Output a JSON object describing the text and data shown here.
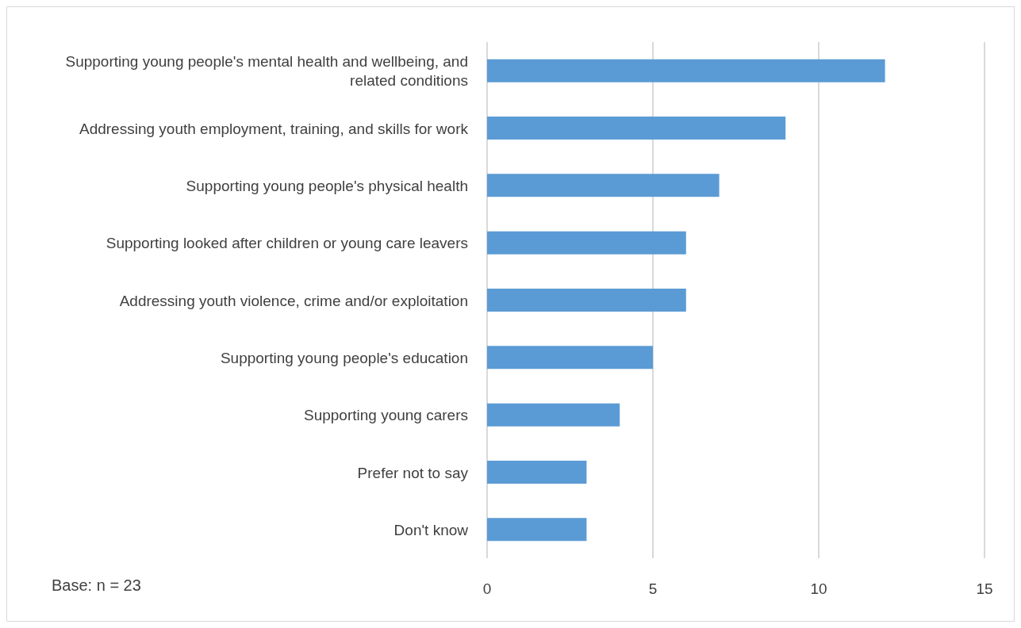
{
  "chart_data": {
    "type": "bar",
    "orientation": "horizontal",
    "categories": [
      "Supporting young people's mental health and wellbeing, and related conditions",
      "Addressing youth employment, training, and skills for work",
      "Supporting young people's physical health",
      "Supporting looked after children or young care leavers",
      "Addressing youth violence, crime and/or exploitation",
      "Supporting young people's education",
      "Supporting young carers",
      "Prefer not to say",
      "Don't know"
    ],
    "values": [
      12,
      9,
      7,
      6,
      6,
      5,
      4,
      3,
      3
    ],
    "color": "#5b9bd5",
    "xlim": [
      0,
      15
    ],
    "xticks": [
      0,
      5,
      10,
      15
    ],
    "grid": "x",
    "annotations": [
      "Base: n = 23"
    ]
  }
}
